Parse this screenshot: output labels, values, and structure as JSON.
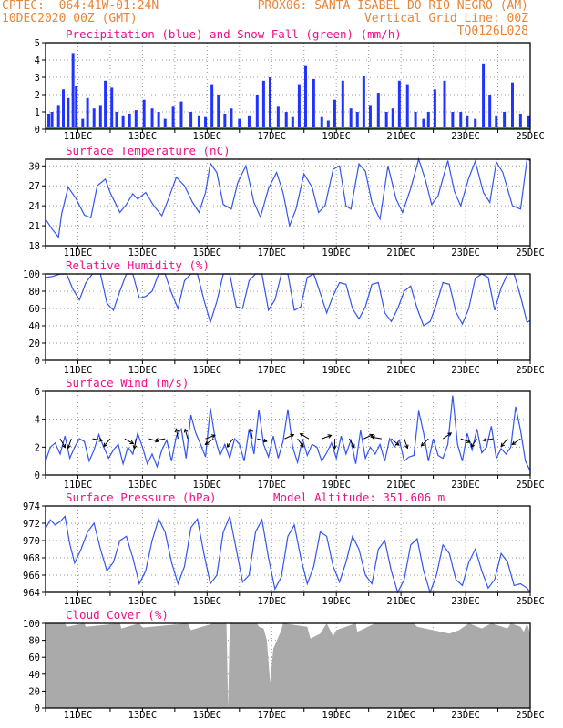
{
  "header": {
    "left_line1": "CPTEC:  064:41W-01:24N",
    "left_line2": "10DEC2020 00Z (GMT)",
    "right_line1": "PROX06: SANTA ISABEL DO RIO NEGRO (AM)",
    "right_line2": "Vertical Grid Line: 00Z",
    "right_line3": "TQ0126L028"
  },
  "colors": {
    "header": "#e8853a",
    "title": "#ee1188",
    "line": "#3355ee",
    "precip": "#2233ff",
    "snow": "#22aa22",
    "cloud": "#aaaaaa",
    "grid": "#999999"
  },
  "chart_data": [
    {
      "type": "bar",
      "title": "Precipitation (blue) and Snow Fall (green) (mm/h)",
      "ylim": [
        0,
        5
      ],
      "yticks": [
        0,
        1,
        2,
        3,
        4,
        5
      ],
      "xlim": [
        10,
        25
      ],
      "xticks": [
        "11DEC",
        "13DEC",
        "15DEC",
        "17DEC",
        "19DEC",
        "21DEC",
        "23DEC",
        "25DEC"
      ],
      "series": [
        {
          "name": "Precipitation",
          "x": [
            10.1,
            10.2,
            10.4,
            10.55,
            10.7,
            10.85,
            10.95,
            11.15,
            11.3,
            11.5,
            11.7,
            11.85,
            12.05,
            12.2,
            12.4,
            12.6,
            12.8,
            13.05,
            13.3,
            13.5,
            13.7,
            13.95,
            14.2,
            14.5,
            14.75,
            14.95,
            15.15,
            15.35,
            15.55,
            15.75,
            16.0,
            16.3,
            16.55,
            16.75,
            16.95,
            17.2,
            17.45,
            17.65,
            17.85,
            18.05,
            18.3,
            18.55,
            18.75,
            18.95,
            19.2,
            19.45,
            19.65,
            19.85,
            20.05,
            20.3,
            20.55,
            20.75,
            20.95,
            21.2,
            21.45,
            21.7,
            21.85,
            22.05,
            22.35,
            22.6,
            22.85,
            23.05,
            23.3,
            23.55,
            23.75,
            23.95,
            24.2,
            24.45,
            24.7,
            24.95
          ],
          "values": [
            0.9,
            1.0,
            1.4,
            2.3,
            1.8,
            4.4,
            2.5,
            0.6,
            1.8,
            1.2,
            1.4,
            2.8,
            2.4,
            1.0,
            0.8,
            0.9,
            1.1,
            1.7,
            1.2,
            1.0,
            0.6,
            1.3,
            1.6,
            1.0,
            0.8,
            0.7,
            2.6,
            2.0,
            0.9,
            1.2,
            0.6,
            0.8,
            2.0,
            2.8,
            3.0,
            1.3,
            1.0,
            0.7,
            2.6,
            3.7,
            2.9,
            0.7,
            0.5,
            1.7,
            2.8,
            1.2,
            1.0,
            3.1,
            1.4,
            2.1,
            1.0,
            1.2,
            2.8,
            2.6,
            1.0,
            0.6,
            1.0,
            2.3,
            2.8,
            1.0,
            1.0,
            0.8,
            0.6,
            3.8,
            2.0,
            0.8,
            1.0,
            2.7,
            0.9,
            0.8
          ]
        },
        {
          "name": "Snow Fall",
          "values": [
            0
          ]
        }
      ]
    },
    {
      "type": "line",
      "title": "Surface Temperature (nC)",
      "ylim": [
        18,
        31
      ],
      "yticks": [
        18,
        21,
        24,
        27,
        30
      ],
      "xlim": [
        10,
        25
      ],
      "xticks": [
        "11DEC",
        "13DEC",
        "15DEC",
        "17DEC",
        "19DEC",
        "21DEC",
        "23DEC",
        "25DEC"
      ],
      "series": [
        {
          "name": "Temperature",
          "x": [
            10.0,
            10.2,
            10.4,
            10.5,
            10.7,
            10.95,
            11.2,
            11.4,
            11.6,
            11.85,
            12.0,
            12.3,
            12.5,
            12.7,
            12.85,
            13.1,
            13.35,
            13.6,
            13.8,
            14.05,
            14.3,
            14.55,
            14.75,
            14.95,
            15.1,
            15.3,
            15.5,
            15.75,
            15.95,
            16.2,
            16.45,
            16.65,
            16.9,
            17.15,
            17.35,
            17.55,
            17.75,
            18.0,
            18.25,
            18.45,
            18.65,
            18.9,
            19.1,
            19.3,
            19.45,
            19.7,
            19.9,
            20.1,
            20.35,
            20.6,
            20.85,
            21.05,
            21.3,
            21.55,
            21.75,
            21.95,
            22.15,
            22.45,
            22.65,
            22.85,
            23.1,
            23.3,
            23.55,
            23.75,
            23.95,
            24.15,
            24.45,
            24.7,
            24.9,
            25.0
          ],
          "values": [
            22.0,
            20.5,
            19.3,
            22.8,
            26.8,
            25.0,
            22.6,
            22.2,
            27.0,
            28.0,
            26.0,
            23.0,
            24.2,
            25.8,
            25.0,
            26.0,
            24.0,
            22.5,
            25.0,
            28.3,
            27.0,
            24.5,
            23.0,
            26.0,
            30.4,
            29.0,
            24.2,
            23.5,
            27.5,
            30.0,
            24.5,
            22.3,
            26.6,
            29.0,
            26.0,
            21.0,
            23.5,
            28.8,
            26.8,
            23.0,
            24.0,
            29.5,
            30.0,
            24.0,
            23.5,
            30.3,
            29.2,
            24.5,
            22.0,
            30.0,
            25.0,
            23.0,
            26.6,
            31.2,
            28.0,
            24.2,
            25.5,
            30.8,
            26.2,
            24.0,
            28.2,
            30.7,
            26.0,
            24.5,
            30.6,
            29.0,
            24.0,
            23.5,
            31.0,
            30.8
          ]
        }
      ]
    },
    {
      "type": "line",
      "title": "Relative Humidity (%)",
      "ylim": [
        0,
        100
      ],
      "yticks": [
        0,
        20,
        40,
        60,
        80,
        100
      ],
      "xlim": [
        10,
        25
      ],
      "xticks": [
        "11DEC",
        "13DEC",
        "15DEC",
        "17DEC",
        "19DEC",
        "21DEC",
        "23DEC",
        "25DEC"
      ],
      "series": [
        {
          "name": "Relative Humidity",
          "x": [
            10.0,
            10.2,
            10.45,
            10.65,
            10.85,
            11.05,
            11.25,
            11.45,
            11.7,
            11.9,
            12.1,
            12.3,
            12.5,
            12.7,
            12.9,
            13.1,
            13.3,
            13.5,
            13.7,
            13.9,
            14.1,
            14.3,
            14.5,
            14.7,
            14.9,
            15.1,
            15.3,
            15.5,
            15.7,
            15.9,
            16.1,
            16.3,
            16.5,
            16.7,
            16.9,
            17.1,
            17.3,
            17.5,
            17.7,
            17.9,
            18.1,
            18.3,
            18.5,
            18.7,
            18.9,
            19.1,
            19.3,
            19.5,
            19.7,
            19.9,
            20.1,
            20.3,
            20.5,
            20.7,
            20.9,
            21.1,
            21.3,
            21.5,
            21.7,
            21.9,
            22.1,
            22.3,
            22.5,
            22.7,
            22.9,
            23.1,
            23.3,
            23.5,
            23.7,
            23.9,
            24.1,
            24.3,
            24.5,
            24.7,
            24.9,
            25.0
          ],
          "values": [
            96,
            97,
            100,
            100,
            82,
            70,
            90,
            100,
            100,
            66,
            58,
            80,
            100,
            100,
            72,
            74,
            80,
            100,
            100,
            78,
            60,
            92,
            100,
            100,
            70,
            44,
            68,
            100,
            100,
            62,
            60,
            92,
            100,
            100,
            58,
            70,
            100,
            100,
            58,
            62,
            96,
            100,
            78,
            55,
            75,
            90,
            88,
            60,
            48,
            62,
            88,
            90,
            55,
            45,
            60,
            80,
            86,
            60,
            40,
            45,
            65,
            90,
            88,
            56,
            42,
            60,
            95,
            100,
            96,
            58,
            84,
            100,
            100,
            74,
            44,
            46
          ]
        }
      ]
    },
    {
      "type": "line",
      "title": "Surface Wind (m/s)",
      "ylim": [
        0,
        6
      ],
      "yticks": [
        0,
        2,
        4,
        6
      ],
      "xlim": [
        10,
        25
      ],
      "xticks": [
        "11DEC",
        "13DEC",
        "15DEC",
        "17DEC",
        "19DEC",
        "21DEC",
        "23DEC",
        "25DEC"
      ],
      "series": [
        {
          "name": "Wind speed",
          "x": [
            10.0,
            10.15,
            10.3,
            10.45,
            10.6,
            10.75,
            10.9,
            11.05,
            11.2,
            11.35,
            11.5,
            11.65,
            11.8,
            11.95,
            12.1,
            12.25,
            12.4,
            12.55,
            12.7,
            12.85,
            13.0,
            13.15,
            13.3,
            13.45,
            13.6,
            13.75,
            13.9,
            14.05,
            14.2,
            14.35,
            14.5,
            14.65,
            14.8,
            14.95,
            15.1,
            15.25,
            15.4,
            15.55,
            15.7,
            15.85,
            16.0,
            16.15,
            16.3,
            16.45,
            16.6,
            16.75,
            16.9,
            17.05,
            17.2,
            17.35,
            17.5,
            17.65,
            17.8,
            17.95,
            18.1,
            18.25,
            18.4,
            18.55,
            18.7,
            18.85,
            19.0,
            19.15,
            19.3,
            19.45,
            19.6,
            19.75,
            19.9,
            20.05,
            20.2,
            20.35,
            20.5,
            20.65,
            20.8,
            20.95,
            21.1,
            21.25,
            21.4,
            21.55,
            21.7,
            21.85,
            22.0,
            22.15,
            22.3,
            22.45,
            22.6,
            22.75,
            22.9,
            23.05,
            23.2,
            23.35,
            23.5,
            23.65,
            23.8,
            23.95,
            24.1,
            24.25,
            24.4,
            24.55,
            24.7,
            24.85,
            25.0
          ],
          "values": [
            1.0,
            2.0,
            2.3,
            1.5,
            2.8,
            1.2,
            2.0,
            2.6,
            2.4,
            1.0,
            1.8,
            2.9,
            2.0,
            1.2,
            1.8,
            2.2,
            0.8,
            2.0,
            1.5,
            3.0,
            2.0,
            0.8,
            1.5,
            0.6,
            1.8,
            2.5,
            1.0,
            2.8,
            3.3,
            1.2,
            4.3,
            3.0,
            2.2,
            1.3,
            4.8,
            2.6,
            1.4,
            2.2,
            1.2,
            2.6,
            2.2,
            1.0,
            3.3,
            1.5,
            4.7,
            2.2,
            1.3,
            2.8,
            1.2,
            2.4,
            4.7,
            2.0,
            0.9,
            2.6,
            1.4,
            2.2,
            2.0,
            1.0,
            1.6,
            2.3,
            1.2,
            2.8,
            1.5,
            2.5,
            0.8,
            3.2,
            1.2,
            2.0,
            1.5,
            2.2,
            1.0,
            2.6,
            2.0,
            2.5,
            1.0,
            1.3,
            1.4,
            4.6,
            3.0,
            1.0,
            2.6,
            1.4,
            1.2,
            2.2,
            5.7,
            2.2,
            1.0,
            3.0,
            1.8,
            3.3,
            1.6,
            2.0,
            3.5,
            1.2,
            1.9,
            1.5,
            2.0,
            4.9,
            3.2,
            1.0,
            0.3
          ]
        }
      ]
    },
    {
      "type": "line",
      "title": "Surface Pressure (hPa)",
      "subtitle": "Model Altitude: 351.606 m",
      "ylim": [
        964,
        974
      ],
      "yticks": [
        964,
        966,
        968,
        970,
        972,
        974
      ],
      "xlim": [
        10,
        25
      ],
      "xticks": [
        "11DEC",
        "13DEC",
        "15DEC",
        "17DEC",
        "19DEC",
        "21DEC",
        "23DEC",
        "25DEC"
      ],
      "series": [
        {
          "name": "Pressure",
          "x": [
            10.0,
            10.15,
            10.3,
            10.45,
            10.6,
            10.75,
            10.9,
            11.1,
            11.3,
            11.5,
            11.7,
            11.9,
            12.1,
            12.3,
            12.5,
            12.7,
            12.9,
            13.1,
            13.3,
            13.5,
            13.7,
            13.9,
            14.1,
            14.3,
            14.5,
            14.7,
            14.9,
            15.1,
            15.3,
            15.5,
            15.7,
            15.9,
            16.1,
            16.3,
            16.5,
            16.7,
            16.9,
            17.1,
            17.3,
            17.5,
            17.7,
            17.9,
            18.1,
            18.3,
            18.5,
            18.7,
            18.9,
            19.1,
            19.3,
            19.5,
            19.7,
            19.9,
            20.1,
            20.3,
            20.5,
            20.7,
            20.9,
            21.1,
            21.3,
            21.5,
            21.7,
            21.9,
            22.1,
            22.3,
            22.5,
            22.7,
            22.9,
            23.1,
            23.3,
            23.5,
            23.7,
            23.9,
            24.1,
            24.3,
            24.5,
            24.7,
            24.9,
            25.0
          ],
          "values": [
            971.4,
            972.4,
            971.8,
            972.2,
            972.8,
            969.6,
            967.4,
            969.0,
            971.0,
            972.0,
            969.0,
            966.5,
            967.5,
            970.0,
            970.5,
            968.0,
            965.0,
            966.5,
            970.0,
            972.5,
            971.0,
            967.5,
            965.0,
            967.0,
            971.5,
            972.5,
            968.5,
            965.0,
            966.0,
            971.0,
            972.8,
            969.0,
            965.2,
            966.0,
            971.0,
            972.4,
            968.0,
            964.4,
            965.8,
            970.5,
            971.8,
            968.0,
            965.0,
            967.0,
            971.0,
            970.5,
            967.0,
            965.2,
            967.5,
            970.5,
            969.0,
            966.0,
            965.0,
            969.0,
            970.0,
            966.5,
            963.8,
            965.5,
            969.5,
            970.2,
            966.5,
            963.8,
            966.0,
            969.5,
            968.5,
            965.5,
            964.8,
            967.5,
            969.0,
            966.5,
            964.5,
            965.5,
            968.5,
            967.5,
            964.8,
            965.0,
            964.5,
            964.0
          ]
        }
      ]
    },
    {
      "type": "area",
      "title": "Cloud Cover (%)",
      "ylim": [
        0,
        100
      ],
      "yticks": [
        0,
        20,
        40,
        60,
        80,
        100
      ],
      "xlim": [
        10,
        25
      ],
      "xticks": [
        "11DEC",
        "13DEC",
        "15DEC",
        "17DEC",
        "19DEC",
        "21DEC",
        "23DEC",
        "25DEC"
      ],
      "series": [
        {
          "name": "Cloud Cover",
          "x": [
            10.0,
            10.6,
            10.65,
            11.2,
            11.25,
            12.3,
            12.35,
            12.9,
            13.0,
            14.4,
            14.5,
            15.2,
            15.6,
            15.65,
            15.7,
            16.2,
            16.55,
            16.6,
            16.75,
            16.85,
            16.95,
            17.05,
            17.3,
            17.35,
            18.1,
            18.2,
            18.5,
            18.7,
            18.9,
            19.0,
            19.6,
            19.65,
            20.2,
            21.4,
            21.5,
            22.5,
            22.8,
            23.1,
            23.5,
            23.8,
            24.3,
            24.4,
            24.7,
            24.8,
            24.9,
            25.0
          ],
          "values": [
            100,
            100,
            96,
            100,
            96,
            100,
            94,
            100,
            95,
            100,
            92,
            100,
            100,
            0,
            100,
            100,
            100,
            96,
            94,
            80,
            30,
            70,
            92,
            100,
            96,
            82,
            88,
            100,
            85,
            92,
            100,
            90,
            100,
            100,
            96,
            88,
            92,
            100,
            94,
            100,
            94,
            100,
            96,
            90,
            100,
            88
          ]
        }
      ]
    }
  ]
}
